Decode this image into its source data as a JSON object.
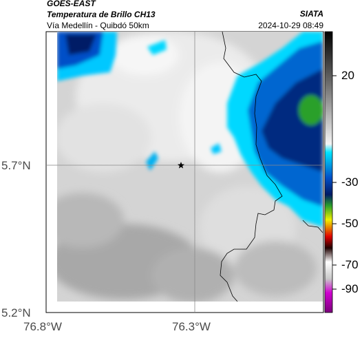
{
  "header": {
    "satellite": "GOES-EAST",
    "product": "Temperatura de Brillo CH13",
    "organization": "SIATA",
    "region": "Vía Medellín - Quibdó 50km",
    "timestamp": "2024-10-29 08:49"
  },
  "axes": {
    "lat_ticks": [
      "5.7°N",
      "5.2°N"
    ],
    "lon_ticks": [
      "76.8°W",
      "76.3°W"
    ]
  },
  "colorbar": {
    "ticks": [
      "20",
      "-30",
      "-50",
      "-70",
      "-90"
    ],
    "colors": {
      "cold_top": "#000000",
      "gray_warm": "#9a9a9a",
      "light": "#f2f2f2",
      "cyan": "#00e5ff",
      "blue": "#0050c8",
      "navy": "#001a66",
      "green": "#2aa02a",
      "yellow": "#f0f000",
      "red": "#e00000",
      "magenta": "#b000b0"
    }
  },
  "marker": {
    "icon": "star-icon"
  }
}
